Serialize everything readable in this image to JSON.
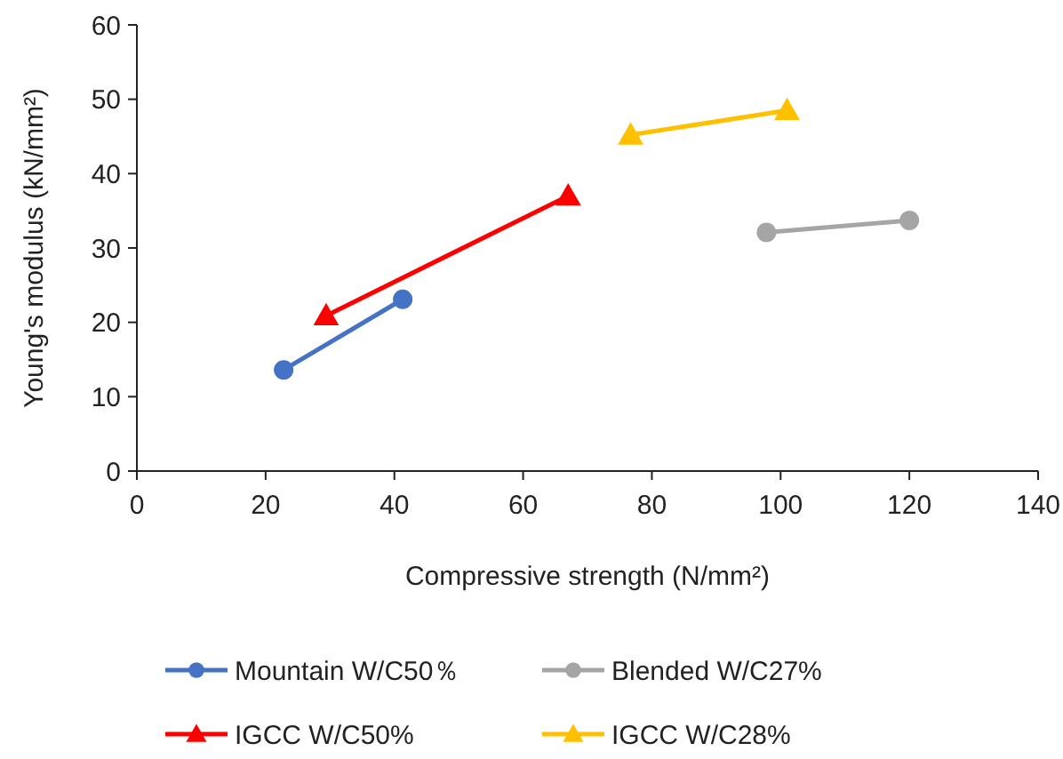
{
  "chart_data": {
    "type": "line",
    "xlabel": "Compressive strength (N/mm²)",
    "ylabel": "Young's modulus (kN/mm²)",
    "xlim": [
      0,
      140
    ],
    "xticks": [
      0,
      20,
      40,
      60,
      80,
      100,
      120,
      140
    ],
    "ylim": [
      0,
      60
    ],
    "yticks": [
      0,
      10,
      20,
      30,
      40,
      50,
      60
    ],
    "grid": false,
    "legend": "bottom",
    "series": [
      {
        "name": "Mountain W/C50％",
        "color": "#4472c4",
        "marker": "circle",
        "x": [
          22.8,
          41.3
        ],
        "values": [
          13.6,
          23.1
        ]
      },
      {
        "name": "Blended W/C27%",
        "color": "#a5a5a5",
        "marker": "circle",
        "x": [
          97.8,
          120
        ],
        "values": [
          32.1,
          33.7
        ]
      },
      {
        "name": "IGCC W/C50%",
        "color": "#ff0000",
        "marker": "triangle",
        "x": [
          29.4,
          67
        ],
        "values": [
          20.9,
          37
        ]
      },
      {
        "name": "IGCC W/C28%",
        "color": "#ffc000",
        "marker": "triangle",
        "x": [
          76.7,
          101
        ],
        "values": [
          45.2,
          48.5
        ]
      }
    ]
  }
}
